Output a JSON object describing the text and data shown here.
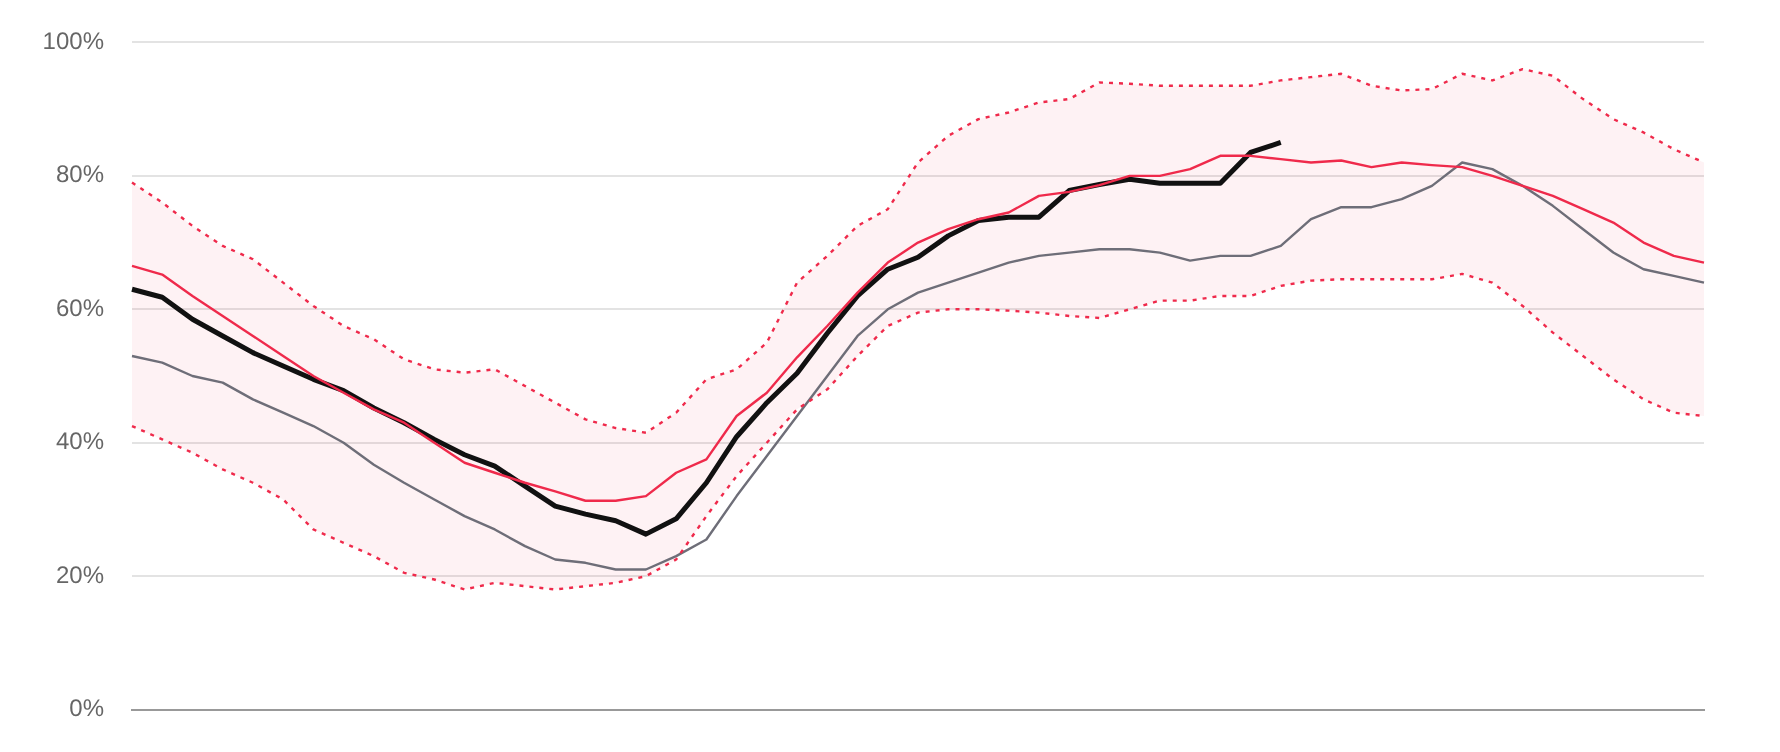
{
  "chart_data": {
    "type": "line",
    "categories": [
      null,
      null,
      null,
      null,
      null,
      null,
      null,
      null,
      null,
      null,
      null,
      null,
      null,
      null,
      null,
      null,
      null,
      null,
      null,
      null,
      null,
      null,
      null,
      null,
      null,
      null,
      null,
      null,
      null,
      null,
      null,
      null,
      null,
      null,
      null,
      null,
      null,
      null,
      null,
      null,
      null,
      null,
      null,
      null,
      null,
      null,
      null,
      null,
      null,
      null,
      null,
      null,
      null
    ],
    "series": [
      {
        "color": "#ef2a4b",
        "values": [
          66.5,
          65.2,
          62,
          59,
          56,
          53,
          50,
          47.5,
          45,
          43,
          40,
          37,
          35.5,
          34,
          32.7,
          31.3,
          31.3,
          32,
          35.5,
          37.5,
          44,
          47.5,
          52.8,
          57.5,
          62.5,
          67,
          70,
          72,
          73.5,
          74.5,
          77,
          77.6,
          78.6,
          80,
          80,
          81,
          83,
          83,
          82.5,
          82,
          82.3,
          81.3,
          82,
          81.6,
          81.3,
          80,
          78.5,
          77,
          75,
          73,
          70,
          68,
          67
        ],
        "lower": [
          42.5,
          40.5,
          38.5,
          36,
          34,
          31.5,
          27,
          25,
          23,
          20.5,
          19.5,
          18,
          19,
          18.5,
          18,
          18.5,
          19,
          20,
          22.5,
          29,
          35,
          40,
          45,
          48,
          53,
          57.5,
          59.5,
          60,
          60,
          59.8,
          59.5,
          59,
          58.7,
          60,
          61.3,
          61.3,
          62,
          62,
          63.5,
          64.3,
          64.5,
          64.5,
          64.5,
          64.5,
          65.3,
          64,
          60.5,
          56.5,
          53,
          49.5,
          46.5,
          44.5,
          44
        ],
        "upper": [
          79,
          76,
          72.5,
          69.5,
          67.5,
          64,
          60.5,
          57.5,
          55.5,
          52.5,
          51,
          50.5,
          51,
          48.5,
          46,
          43.5,
          42.2,
          41.5,
          44.5,
          49.5,
          51,
          55,
          64,
          68,
          72.5,
          75,
          82,
          86,
          88.5,
          89.5,
          91,
          91.5,
          94,
          93.8,
          93.5,
          93.5,
          93.5,
          93.5,
          94.3,
          94.8,
          95.3,
          93.5,
          92.8,
          93,
          95.3,
          94.3,
          96,
          95,
          91.5,
          88.5,
          86.5,
          84,
          82
        ]
      },
      {
        "color": "#ef2a4b",
        "line_style": "dotted",
        "values": [
          79,
          76,
          72.5,
          69.5,
          67.5,
          64,
          60.5,
          57.5,
          55.5,
          52.5,
          51,
          50.5,
          51,
          48.5,
          46,
          43.5,
          42.2,
          41.5,
          44.5,
          49.5,
          51,
          55,
          64,
          68,
          72.5,
          75,
          82,
          86,
          88.5,
          89.5,
          91,
          91.5,
          94,
          93.8,
          93.5,
          93.5,
          93.5,
          93.5,
          94.3,
          94.8,
          95.3,
          93.5,
          92.8,
          93,
          95.3,
          94.3,
          96,
          95,
          91.5,
          88.5,
          86.5,
          84,
          82
        ]
      },
      {
        "color": "#ef2a4b",
        "line_style": "dotted",
        "values": [
          42.5,
          40.5,
          38.5,
          36,
          34,
          31.5,
          27,
          25,
          23,
          20.5,
          19.5,
          18,
          19,
          18.5,
          18,
          18.5,
          19,
          20,
          22.5,
          29,
          35,
          40,
          45,
          48,
          53,
          57.5,
          59.5,
          60,
          60,
          59.8,
          59.5,
          59,
          58.7,
          60,
          61.3,
          61.3,
          62,
          62,
          63.5,
          64.3,
          64.5,
          64.5,
          64.5,
          64.5,
          65.3,
          64,
          60.5,
          56.5,
          53,
          49.5,
          46.5,
          44.5,
          44
        ]
      },
      {
        "color": "#6e6e78",
        "values": [
          53,
          52,
          50,
          49,
          46.5,
          44.5,
          42.5,
          40,
          36.7,
          34,
          31.5,
          29,
          27,
          24.5,
          22.5,
          22,
          21,
          21,
          23,
          25.5,
          32,
          38,
          44,
          50,
          56,
          60,
          62.5,
          64,
          65.5,
          67,
          68,
          68.5,
          69,
          69,
          68.5,
          67.3,
          68,
          68,
          69.5,
          73.5,
          75.3,
          75.3,
          76.5,
          78.5,
          82,
          81,
          78.5,
          75.5,
          72,
          68.5,
          66,
          65,
          64
        ]
      },
      {
        "color": "#111111",
        "values": [
          63,
          61.8,
          58.5,
          56,
          53.5,
          51.5,
          49.5,
          47.8,
          45.2,
          43,
          40.5,
          38.2,
          36.5,
          33.5,
          30.5,
          29.3,
          28.3,
          26.3,
          28.6,
          34,
          40.9,
          46,
          50.4,
          56.4,
          62,
          66,
          67.8,
          71,
          73.3,
          73.8,
          73.8,
          77.8,
          78.7,
          79.5,
          78.9,
          78.9,
          78.9,
          83.5,
          85,
          null,
          null,
          null,
          null,
          null,
          null,
          null,
          null,
          null,
          null,
          null,
          null,
          null,
          null
        ]
      }
    ],
    "ylim": [
      0,
      100
    ],
    "yticks": [
      {
        "value": 0,
        "label": "0%"
      },
      {
        "value": 20,
        "label": "20%"
      },
      {
        "value": 40,
        "label": "40%"
      },
      {
        "value": 60,
        "label": "60%"
      },
      {
        "value": 80,
        "label": "80%"
      },
      {
        "value": 100,
        "label": "100%"
      }
    ],
    "grid": "y",
    "tick_labels": "y",
    "legend": false,
    "marker": "none",
    "line_style": "solid"
  }
}
